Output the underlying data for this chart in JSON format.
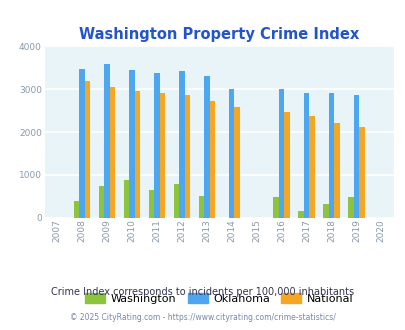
{
  "title": "Washington Property Crime Index",
  "years_with_data": [
    "2008",
    "2009",
    "2010",
    "2011",
    "2012",
    "2013",
    "2014",
    "2016",
    "2017",
    "2018",
    "2019"
  ],
  "washington": {
    "2008": 380,
    "2009": 730,
    "2010": 880,
    "2011": 650,
    "2012": 790,
    "2013": 510,
    "2016": 490,
    "2017": 160,
    "2018": 330,
    "2019": 490
  },
  "oklahoma": {
    "2008": 3470,
    "2009": 3590,
    "2010": 3450,
    "2011": 3370,
    "2012": 3420,
    "2013": 3310,
    "2014": 3010,
    "2016": 3000,
    "2017": 2900,
    "2018": 2900,
    "2019": 2860
  },
  "national": {
    "2008": 3200,
    "2009": 3040,
    "2010": 2950,
    "2011": 2920,
    "2012": 2870,
    "2013": 2720,
    "2014": 2590,
    "2016": 2460,
    "2017": 2380,
    "2018": 2200,
    "2019": 2110
  },
  "bar_colors": {
    "washington": "#8dc43e",
    "oklahoma": "#4da6f0",
    "national": "#f5a623"
  },
  "ylim": [
    0,
    4000
  ],
  "yticks": [
    0,
    1000,
    2000,
    3000,
    4000
  ],
  "bg_color": "#e8f4f8",
  "grid_color": "#ffffff",
  "title_color": "#2255cc",
  "subtitle": "Crime Index corresponds to incidents per 100,000 inhabitants",
  "footer": "© 2025 CityRating.com - https://www.cityrating.com/crime-statistics/",
  "legend_labels": [
    "Washington",
    "Oklahoma",
    "National"
  ],
  "xtick_color": "#8899aa",
  "ytick_color": "#8899aa"
}
